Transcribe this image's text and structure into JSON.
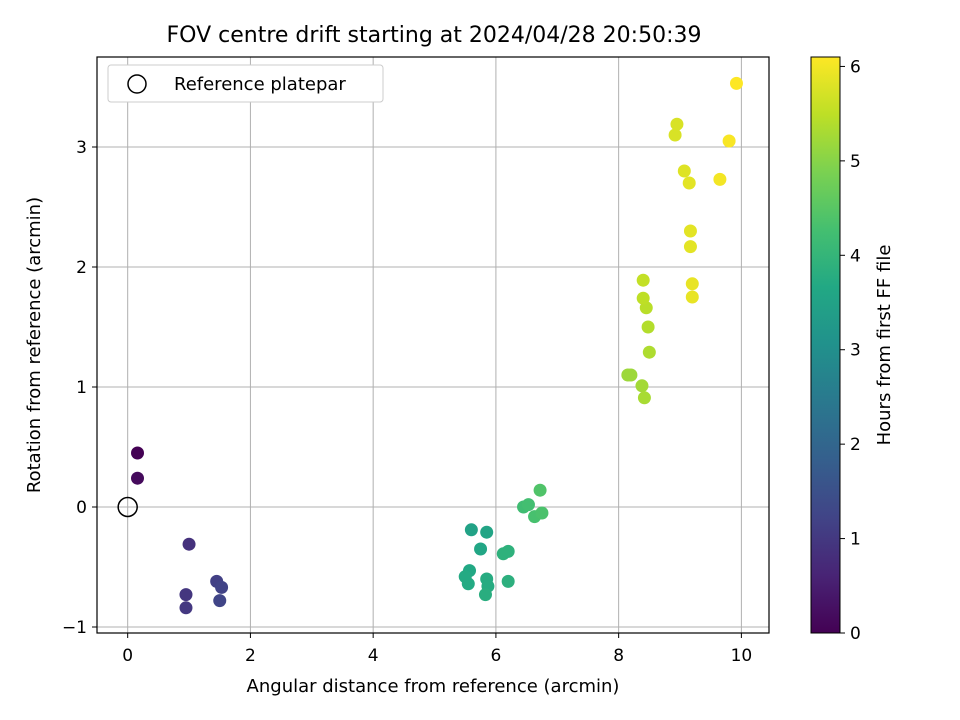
{
  "chart_data": {
    "type": "scatter",
    "title": "FOV centre drift starting at 2024/04/28 20:50:39",
    "xlabel": "Angular distance from reference (arcmin)",
    "ylabel": "Rotation from reference (arcmin)",
    "xlim": [
      -0.5,
      10.45
    ],
    "ylim": [
      -1.05,
      3.75
    ],
    "xticks": [
      0,
      2,
      4,
      6,
      8,
      10
    ],
    "yticks": [
      -1,
      0,
      1,
      2,
      3
    ],
    "grid": true,
    "legend": {
      "placement": "top-left",
      "entries": [
        "Reference platepar"
      ]
    },
    "reference": {
      "label": "Reference platepar",
      "x": 0,
      "y": 0,
      "marker": "open-circle"
    },
    "colorbar": {
      "label": "Hours from first FF file",
      "colormap": "viridis",
      "range": [
        0,
        6.1
      ],
      "ticks": [
        0,
        1,
        2,
        3,
        4,
        5,
        6
      ]
    },
    "points": [
      {
        "x": 0.16,
        "y": 0.45,
        "c": 0.0
      },
      {
        "x": 0.16,
        "y": 0.24,
        "c": 0.15
      },
      {
        "x": 1.0,
        "y": -0.31,
        "c": 0.85
      },
      {
        "x": 0.95,
        "y": -0.73,
        "c": 0.95
      },
      {
        "x": 0.95,
        "y": -0.84,
        "c": 1.0
      },
      {
        "x": 1.45,
        "y": -0.62,
        "c": 1.15
      },
      {
        "x": 1.53,
        "y": -0.67,
        "c": 1.2
      },
      {
        "x": 1.5,
        "y": -0.78,
        "c": 1.25
      },
      {
        "x": 5.6,
        "y": -0.19,
        "c": 3.5
      },
      {
        "x": 5.85,
        "y": -0.21,
        "c": 3.55
      },
      {
        "x": 5.75,
        "y": -0.35,
        "c": 3.6
      },
      {
        "x": 5.57,
        "y": -0.53,
        "c": 3.65
      },
      {
        "x": 5.5,
        "y": -0.58,
        "c": 3.7
      },
      {
        "x": 5.55,
        "y": -0.64,
        "c": 3.7
      },
      {
        "x": 5.85,
        "y": -0.6,
        "c": 3.75
      },
      {
        "x": 5.87,
        "y": -0.66,
        "c": 3.75
      },
      {
        "x": 5.83,
        "y": -0.73,
        "c": 3.8
      },
      {
        "x": 6.2,
        "y": -0.62,
        "c": 3.85
      },
      {
        "x": 6.12,
        "y": -0.39,
        "c": 3.9
      },
      {
        "x": 6.2,
        "y": -0.37,
        "c": 3.9
      },
      {
        "x": 6.45,
        "y": 0.0,
        "c": 4.2
      },
      {
        "x": 6.53,
        "y": 0.02,
        "c": 4.25
      },
      {
        "x": 6.63,
        "y": -0.08,
        "c": 4.3
      },
      {
        "x": 6.75,
        "y": -0.05,
        "c": 4.35
      },
      {
        "x": 6.72,
        "y": 0.14,
        "c": 4.4
      },
      {
        "x": 8.15,
        "y": 1.1,
        "c": 5.2
      },
      {
        "x": 8.2,
        "y": 1.1,
        "c": 5.2
      },
      {
        "x": 8.38,
        "y": 1.01,
        "c": 5.25
      },
      {
        "x": 8.42,
        "y": 0.91,
        "c": 5.3
      },
      {
        "x": 8.5,
        "y": 1.29,
        "c": 5.35
      },
      {
        "x": 8.48,
        "y": 1.5,
        "c": 5.4
      },
      {
        "x": 8.45,
        "y": 1.66,
        "c": 5.45
      },
      {
        "x": 8.4,
        "y": 1.74,
        "c": 5.5
      },
      {
        "x": 8.4,
        "y": 1.89,
        "c": 5.55
      },
      {
        "x": 9.2,
        "y": 1.86,
        "c": 5.9
      },
      {
        "x": 9.2,
        "y": 1.75,
        "c": 5.9
      },
      {
        "x": 9.17,
        "y": 2.17,
        "c": 5.85
      },
      {
        "x": 9.17,
        "y": 2.3,
        "c": 5.85
      },
      {
        "x": 9.07,
        "y": 2.8,
        "c": 5.8
      },
      {
        "x": 9.15,
        "y": 2.7,
        "c": 5.85
      },
      {
        "x": 8.92,
        "y": 3.1,
        "c": 5.75
      },
      {
        "x": 8.95,
        "y": 3.19,
        "c": 5.75
      },
      {
        "x": 9.65,
        "y": 2.73,
        "c": 6.0
      },
      {
        "x": 9.8,
        "y": 3.05,
        "c": 6.05
      },
      {
        "x": 9.92,
        "y": 3.53,
        "c": 6.1
      }
    ]
  }
}
